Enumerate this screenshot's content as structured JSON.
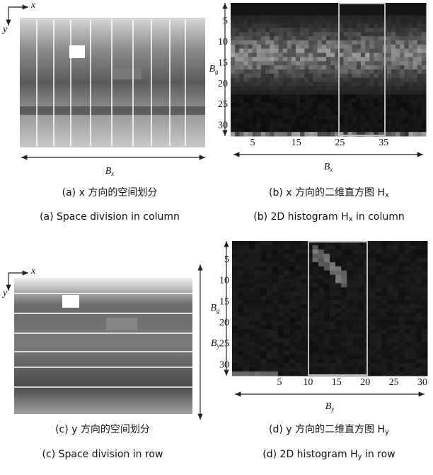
{
  "panels": [
    {
      "axis_x": "x",
      "axis_y": "y",
      "size_label": {
        "main": "B",
        "sub": "x"
      },
      "caption_zh": {
        "text": "(a) x 方向的空间划分",
        "sub": ""
      },
      "caption_en": {
        "text": "(a) Space division in column",
        "sub": ""
      }
    },
    {
      "yticks": [
        "5",
        "10",
        "15",
        "20",
        "25",
        "30"
      ],
      "xticks": [
        "5",
        "15",
        "25",
        "35"
      ],
      "y_label": {
        "main": "B",
        "sub": "g"
      },
      "x_label": {
        "main": "B",
        "sub": "x"
      },
      "caption_zh": {
        "text": "(b) x 方向的二维直方图 H",
        "sub": "x"
      },
      "caption_en": {
        "text": "(b) 2D histogram H",
        "sub": "x",
        "tail": " in column"
      }
    },
    {
      "axis_x": "x",
      "axis_y": "y",
      "size_label": {
        "main": "B",
        "sub": "y"
      },
      "caption_zh": {
        "text": "(c) y 方向的空间划分",
        "sub": ""
      },
      "caption_en": {
        "text": "(c) Space division in row",
        "sub": ""
      }
    },
    {
      "yticks": [
        "5",
        "10",
        "15",
        "20",
        "25",
        "30"
      ],
      "xticks": [
        "5",
        "10",
        "15",
        "20",
        "25",
        "30"
      ],
      "y_label": {
        "main": "B",
        "sub": "g"
      },
      "x_label": {
        "main": "B",
        "sub": "y"
      },
      "caption_zh": {
        "text": "(d) y 方向的二维直方图 H",
        "sub": "y"
      },
      "caption_en": {
        "text": "(d) 2D histogram H",
        "sub": "y",
        "tail": " in row"
      }
    }
  ]
}
